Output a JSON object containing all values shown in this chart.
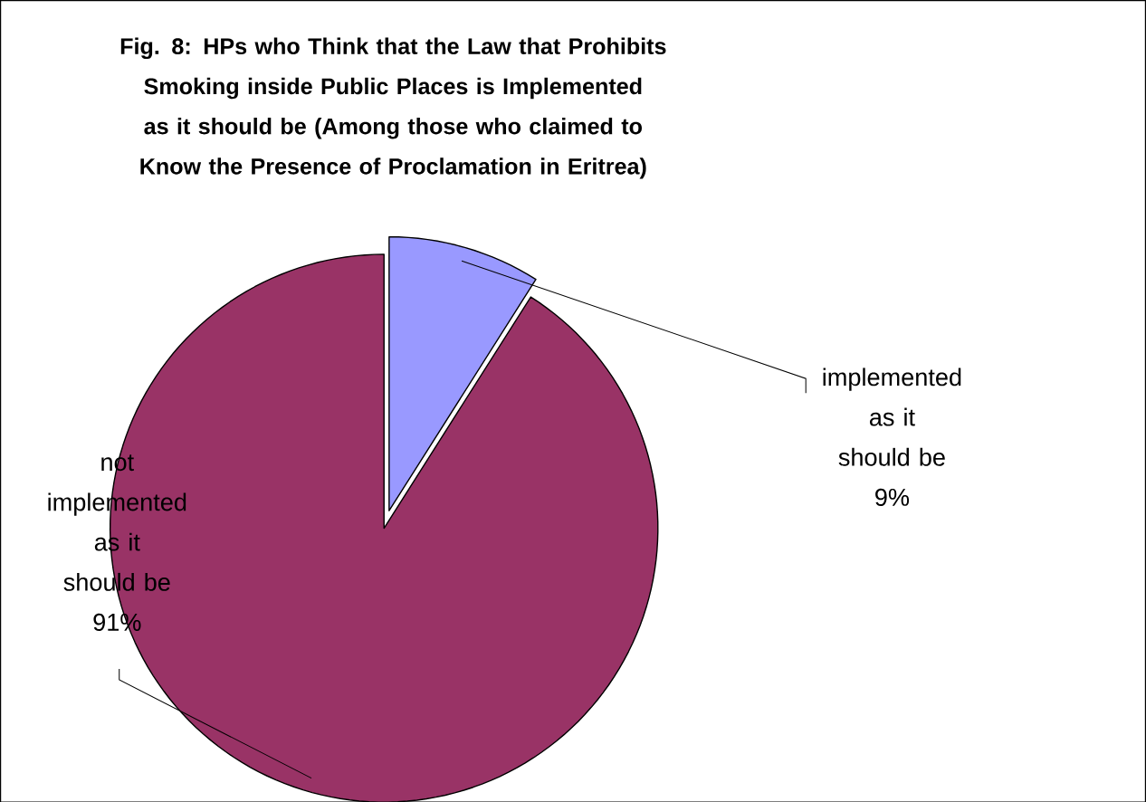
{
  "chart_data": {
    "type": "pie",
    "title": "Fig. 8: HPs who Think that the Law that Prohibits Smoking inside  Public Places is Implemented as it should be (Among those who claimed to Know the Presence of Proclamation in Eritrea)",
    "categories": [
      "implemented as it should be",
      "not implemented as it should be"
    ],
    "values": [
      9,
      91
    ],
    "colors": [
      "#9999ff",
      "#993366"
    ],
    "value_labels": [
      "9%",
      "91%"
    ]
  }
}
